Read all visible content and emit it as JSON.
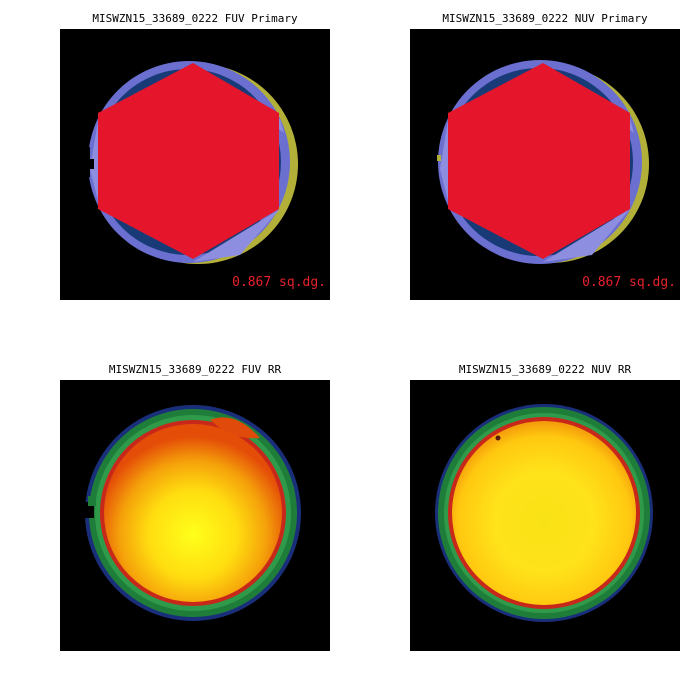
{
  "panels": {
    "fuv_primary": {
      "title": "MISWZN15_33689_0222 FUV Primary",
      "area_label": "0.867 sq.dg."
    },
    "nuv_primary": {
      "title": "MISWZN15_33689_0222 NUV Primary",
      "area_label": "0.867 sq.dg."
    },
    "fuv_rr": {
      "title": "MISWZN15_33689_0222 FUV RR"
    },
    "nuv_rr": {
      "title": "MISWZN15_33689_0222 NUV RR"
    }
  },
  "colors": {
    "background": "#000000",
    "hexagon": "#e5162b",
    "ring_blue": "#6b6fd0",
    "dark_blue": "#183b78",
    "light_violet": "#8e8ee0",
    "olive": "#b3b03a",
    "label": "#e8202e"
  }
}
